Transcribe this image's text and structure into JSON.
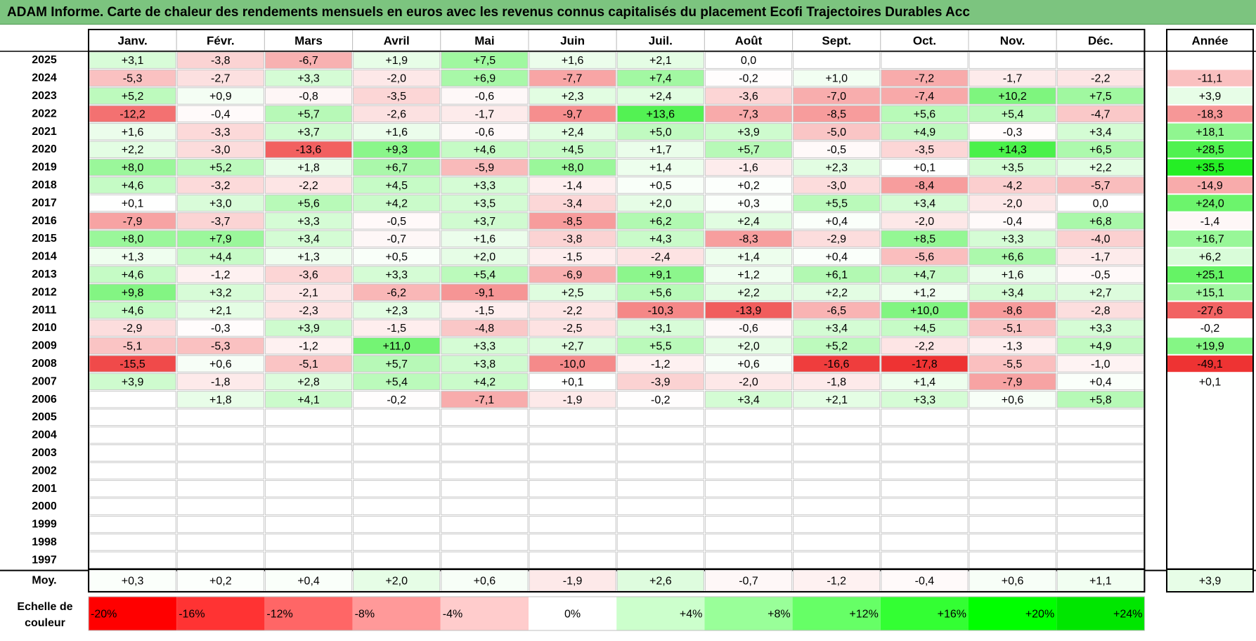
{
  "title": "ADAM Informe. Carte de chaleur des rendements mensuels en euros avec les revenus connus capitalisés du placement Ecofi Trajectoires Durables Acc",
  "chart_data": {
    "type": "heatmap",
    "title": "ADAM Informe. Carte de chaleur des rendements mensuels en euros avec les revenus connus capitalisés du placement Ecofi Trajectoires Durables Acc",
    "columns": [
      "Janv.",
      "Févr.",
      "Mars",
      "Avril",
      "Mai",
      "Juin",
      "Juil.",
      "Août",
      "Sept.",
      "Oct.",
      "Nov.",
      "Déc."
    ],
    "annual_header": "Année",
    "rows": [
      {
        "year": "2025",
        "values": [
          "+3,1",
          "-3,8",
          "-6,7",
          "+1,9",
          "+7,5",
          "+1,6",
          "+2,1",
          "0,0",
          "",
          "",
          "",
          ""
        ],
        "annual": ""
      },
      {
        "year": "2024",
        "values": [
          "-5,3",
          "-2,7",
          "+3,3",
          "-2,0",
          "+6,9",
          "-7,7",
          "+7,4",
          "-0,2",
          "+1,0",
          "-7,2",
          "-1,7",
          "-2,2"
        ],
        "annual": "-11,1"
      },
      {
        "year": "2023",
        "values": [
          "+5,2",
          "+0,9",
          "-0,8",
          "-3,5",
          "-0,6",
          "+2,3",
          "+2,4",
          "-3,6",
          "-7,0",
          "-7,4",
          "+10,2",
          "+7,5"
        ],
        "annual": "+3,9"
      },
      {
        "year": "2022",
        "values": [
          "-12,2",
          "-0,4",
          "+5,7",
          "-2,6",
          "-1,7",
          "-9,7",
          "+13,6",
          "-7,3",
          "-8,5",
          "+5,6",
          "+5,4",
          "-4,7"
        ],
        "annual": "-18,3"
      },
      {
        "year": "2021",
        "values": [
          "+1,6",
          "-3,3",
          "+3,7",
          "+1,6",
          "-0,6",
          "+2,4",
          "+5,0",
          "+3,9",
          "-5,0",
          "+4,9",
          "-0,3",
          "+3,4"
        ],
        "annual": "+18,1"
      },
      {
        "year": "2020",
        "values": [
          "+2,2",
          "-3,0",
          "-13,6",
          "+9,3",
          "+4,6",
          "+4,5",
          "+1,7",
          "+5,7",
          "-0,5",
          "-3,5",
          "+14,3",
          "+6,5"
        ],
        "annual": "+28,5"
      },
      {
        "year": "2019",
        "values": [
          "+8,0",
          "+5,2",
          "+1,8",
          "+6,7",
          "-5,9",
          "+8,0",
          "+1,4",
          "-1,6",
          "+2,3",
          "+0,1",
          "+3,5",
          "+2,2"
        ],
        "annual": "+35,5"
      },
      {
        "year": "2018",
        "values": [
          "+4,6",
          "-3,2",
          "-2,2",
          "+4,5",
          "+3,3",
          "-1,4",
          "+0,5",
          "+0,2",
          "-3,0",
          "-8,4",
          "-4,2",
          "-5,7"
        ],
        "annual": "-14,9"
      },
      {
        "year": "2017",
        "values": [
          "+0,1",
          "+3,0",
          "+5,6",
          "+4,2",
          "+3,5",
          "-3,4",
          "+2,0",
          "+0,3",
          "+5,5",
          "+3,4",
          "-2,0",
          "0,0"
        ],
        "annual": "+24,0"
      },
      {
        "year": "2016",
        "values": [
          "-7,9",
          "-3,7",
          "+3,3",
          "-0,5",
          "+3,7",
          "-8,5",
          "+6,2",
          "+2,4",
          "+0,4",
          "-2,0",
          "-0,4",
          "+6,8"
        ],
        "annual": "-1,4"
      },
      {
        "year": "2015",
        "values": [
          "+8,0",
          "+7,9",
          "+3,4",
          "-0,7",
          "+1,6",
          "-3,8",
          "+4,3",
          "-8,3",
          "-2,9",
          "+8,5",
          "+3,3",
          "-4,0"
        ],
        "annual": "+16,7"
      },
      {
        "year": "2014",
        "values": [
          "+1,3",
          "+4,4",
          "+1,3",
          "+0,5",
          "+2,0",
          "-1,5",
          "-2,4",
          "+1,4",
          "+0,4",
          "-5,6",
          "+6,6",
          "-1,7"
        ],
        "annual": "+6,2"
      },
      {
        "year": "2013",
        "values": [
          "+4,6",
          "-1,2",
          "-3,6",
          "+3,3",
          "+5,4",
          "-6,9",
          "+9,1",
          "+1,2",
          "+6,1",
          "+4,7",
          "+1,6",
          "-0,5"
        ],
        "annual": "+25,1"
      },
      {
        "year": "2012",
        "values": [
          "+9,8",
          "+3,2",
          "-2,1",
          "-6,2",
          "-9,1",
          "+2,5",
          "+5,6",
          "+2,2",
          "+2,2",
          "+1,2",
          "+3,4",
          "+2,7"
        ],
        "annual": "+15,1"
      },
      {
        "year": "2011",
        "values": [
          "+4,6",
          "+2,1",
          "-2,3",
          "+2,3",
          "-1,5",
          "-2,2",
          "-10,3",
          "-13,9",
          "-6,5",
          "+10,0",
          "-8,6",
          "-2,8"
        ],
        "annual": "-27,6"
      },
      {
        "year": "2010",
        "values": [
          "-2,9",
          "-0,3",
          "+3,9",
          "-1,5",
          "-4,8",
          "-2,5",
          "+3,1",
          "-0,6",
          "+3,4",
          "+4,5",
          "-5,1",
          "+3,3"
        ],
        "annual": "-0,2"
      },
      {
        "year": "2009",
        "values": [
          "-5,1",
          "-5,3",
          "-1,2",
          "+11,0",
          "+3,3",
          "+2,7",
          "+5,5",
          "+2,0",
          "+5,2",
          "-2,2",
          "-1,3",
          "+4,9"
        ],
        "annual": "+19,9"
      },
      {
        "year": "2008",
        "values": [
          "-15,5",
          "+0,6",
          "-5,1",
          "+5,7",
          "+3,8",
          "-10,0",
          "-1,2",
          "+0,6",
          "-16,6",
          "-17,8",
          "-5,5",
          "-1,0"
        ],
        "annual": "-49,1"
      },
      {
        "year": "2007",
        "values": [
          "+3,9",
          "-1,8",
          "+2,8",
          "+5,4",
          "+4,2",
          "+0,1",
          "-3,9",
          "-2,0",
          "-1,8",
          "+1,4",
          "-7,9",
          "+0,4"
        ],
        "annual": "+0,1"
      },
      {
        "year": "2006",
        "values": [
          "",
          "+1,8",
          "+4,1",
          "-0,2",
          "-7,1",
          "-1,9",
          "-0,2",
          "+3,4",
          "+2,1",
          "+3,3",
          "+0,6",
          "+5,8"
        ],
        "annual": ""
      },
      {
        "year": "2005",
        "values": [
          "",
          "",
          "",
          "",
          "",
          "",
          "",
          "",
          "",
          "",
          "",
          ""
        ],
        "annual": ""
      },
      {
        "year": "2004",
        "values": [
          "",
          "",
          "",
          "",
          "",
          "",
          "",
          "",
          "",
          "",
          "",
          ""
        ],
        "annual": ""
      },
      {
        "year": "2003",
        "values": [
          "",
          "",
          "",
          "",
          "",
          "",
          "",
          "",
          "",
          "",
          "",
          ""
        ],
        "annual": ""
      },
      {
        "year": "2002",
        "values": [
          "",
          "",
          "",
          "",
          "",
          "",
          "",
          "",
          "",
          "",
          "",
          ""
        ],
        "annual": ""
      },
      {
        "year": "2001",
        "values": [
          "",
          "",
          "",
          "",
          "",
          "",
          "",
          "",
          "",
          "",
          "",
          ""
        ],
        "annual": ""
      },
      {
        "year": "2000",
        "values": [
          "",
          "",
          "",
          "",
          "",
          "",
          "",
          "",
          "",
          "",
          "",
          ""
        ],
        "annual": ""
      },
      {
        "year": "1999",
        "values": [
          "",
          "",
          "",
          "",
          "",
          "",
          "",
          "",
          "",
          "",
          "",
          ""
        ],
        "annual": ""
      },
      {
        "year": "1998",
        "values": [
          "",
          "",
          "",
          "",
          "",
          "",
          "",
          "",
          "",
          "",
          "",
          ""
        ],
        "annual": ""
      },
      {
        "year": "1997",
        "values": [
          "",
          "",
          "",
          "",
          "",
          "",
          "",
          "",
          "",
          "",
          "",
          ""
        ],
        "annual": ""
      }
    ],
    "average": {
      "label": "Moy.",
      "values": [
        "+0,3",
        "+0,2",
        "+0,4",
        "+2,0",
        "+0,6",
        "-1,9",
        "+2,6",
        "-0,7",
        "-1,2",
        "-0,4",
        "+0,6",
        "+1,1"
      ],
      "annual": "+3,9"
    },
    "color_scale": {
      "title": "Echelle de couleur",
      "labels": [
        "-20%",
        "-16%",
        "-12%",
        "-8%",
        "-4%",
        "0%",
        "+4%",
        "+8%",
        "+12%",
        "+16%",
        "+20%",
        "+24%"
      ],
      "values": [
        -20,
        -16,
        -12,
        -8,
        -4,
        0,
        4,
        8,
        12,
        16,
        20,
        24
      ],
      "colors": [
        "#ff0000",
        "#ff3333",
        "#ff6666",
        "#ff9999",
        "#ffcccc",
        "#ffffff",
        "#ccffcc",
        "#99ff99",
        "#66ff66",
        "#33ff33",
        "#00ff00",
        "#00e600"
      ]
    }
  }
}
